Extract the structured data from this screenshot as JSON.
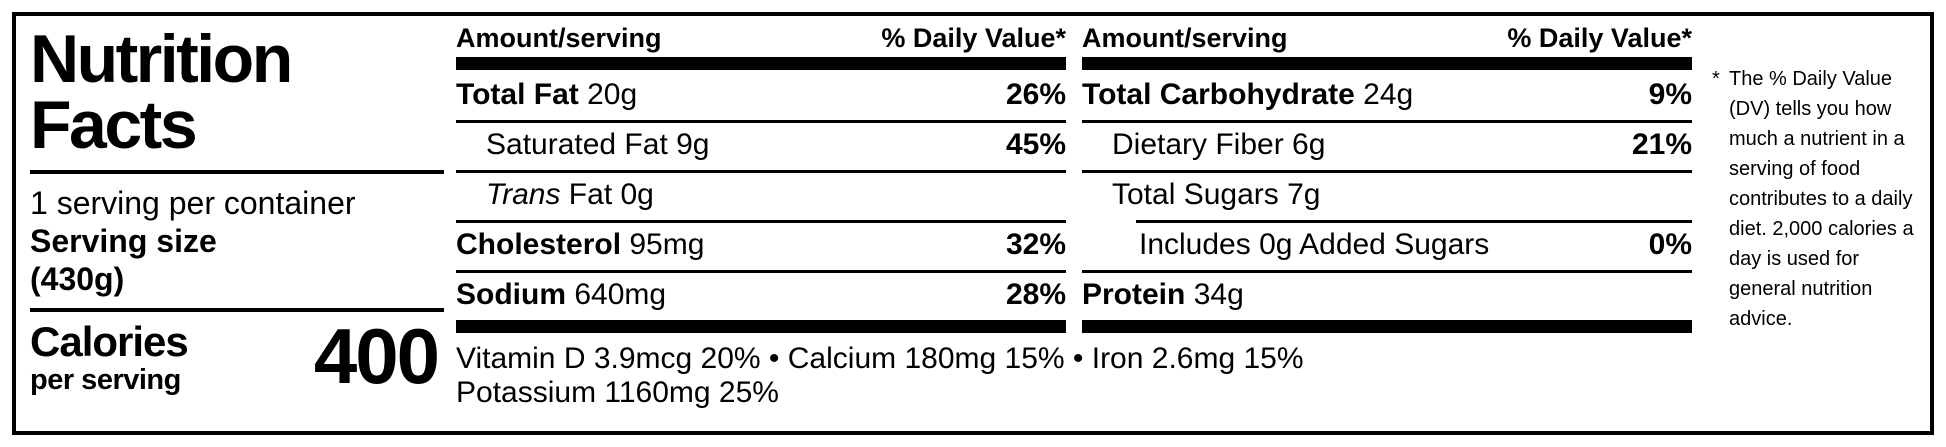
{
  "label": {
    "title_line1": "Nutrition",
    "title_line2": "Facts",
    "servings_per_container": "1 serving per container",
    "serving_size_label": "Serving size",
    "serving_size_value": "(430g)",
    "calories_label": "Calories",
    "calories_sublabel": "per serving",
    "calories_value": "400"
  },
  "columns": [
    {
      "header_left": "Amount/serving",
      "header_right": "% Daily Value*",
      "rows": [
        {
          "bold": "Total Fat",
          "rest": " 20g",
          "dv": "26%"
        },
        {
          "rest": "Saturated Fat 9g",
          "dv": "45%"
        },
        {
          "italic": "Trans",
          "rest": " Fat 0g",
          "dv": ""
        },
        {
          "bold": "Cholesterol",
          "rest": " 95mg",
          "dv": "32%"
        },
        {
          "bold": "Sodium",
          "rest": " 640mg",
          "dv": "28%"
        }
      ]
    },
    {
      "header_left": "Amount/serving",
      "header_right": "% Daily Value*",
      "rows": [
        {
          "bold": "Total Carbohydrate",
          "rest": " 24g",
          "dv": "9%"
        },
        {
          "rest": "Dietary Fiber 6g",
          "dv": "21%"
        },
        {
          "rest": "Total Sugars 7g",
          "dv": ""
        },
        {
          "rest": "Includes 0g Added Sugars",
          "dv": "0%"
        },
        {
          "bold": "Protein",
          "rest": " 34g",
          "dv": ""
        }
      ]
    }
  ],
  "micronutrients": {
    "line1": "Vitamin D 3.9mcg 20% • Calcium 180mg 15% • Iron 2.6mg 15%",
    "line2": "Potassium 1160mg 25%"
  },
  "footnote": {
    "asterisk": "*",
    "text": "The % Daily Value (DV) tells you how much a nutrient in a serving of food contributes to a daily diet. 2,000 calories a day is used for general nutrition advice."
  },
  "colors": {
    "ink": "#000000",
    "background": "#ffffff"
  }
}
